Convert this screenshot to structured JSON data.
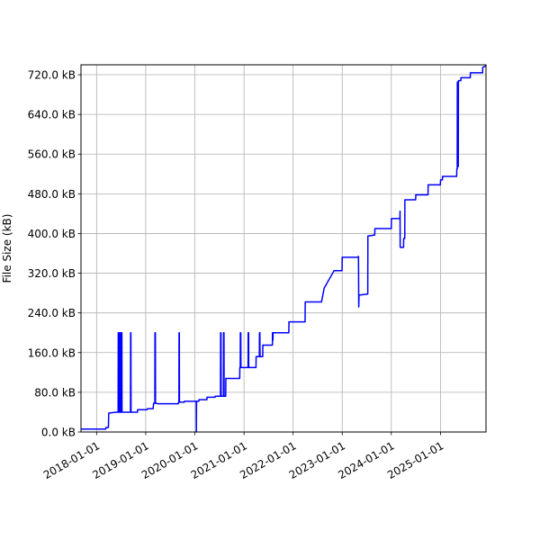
{
  "chart_data": {
    "type": "line",
    "title": "",
    "xlabel": "",
    "ylabel": "File Size (kB)",
    "xlim": [
      "2017-09-07",
      "2025-12-05"
    ],
    "ylim": [
      0,
      740
    ],
    "x_ticks": [
      "2018-01-01",
      "2019-01-01",
      "2020-01-01",
      "2021-01-01",
      "2022-01-01",
      "2023-01-01",
      "2024-01-01",
      "2025-01-01"
    ],
    "y_ticks": [
      0,
      80,
      160,
      240,
      320,
      400,
      480,
      560,
      640,
      720
    ],
    "y_tick_labels": [
      "0.0 kB",
      "80.0 kB",
      "160.0 kB",
      "240.0 kB",
      "320.0 kB",
      "400.0 kB",
      "480.0 kB",
      "560.0 kB",
      "640.0 kB",
      "720.0 kB"
    ],
    "grid": true,
    "line_color": "#0000ff",
    "series": [
      {
        "points": [
          [
            "2017-09-07",
            6
          ],
          [
            "2018-03-10",
            6
          ],
          [
            "2018-03-11",
            9
          ],
          [
            "2018-03-30",
            9
          ],
          [
            "2018-04-01",
            38
          ],
          [
            "2018-06-01",
            40
          ],
          [
            "2018-06-10",
            40
          ],
          [
            "2018-06-11",
            200
          ],
          [
            "2018-06-15",
            200
          ],
          [
            "2018-06-16",
            40
          ],
          [
            "2018-06-22",
            40
          ],
          [
            "2018-06-23",
            200
          ],
          [
            "2018-06-27",
            200
          ],
          [
            "2018-06-28",
            40
          ],
          [
            "2018-07-03",
            40
          ],
          [
            "2018-07-04",
            200
          ],
          [
            "2018-07-08",
            200
          ],
          [
            "2018-07-09",
            40
          ],
          [
            "2018-09-10",
            40
          ],
          [
            "2018-09-11",
            200
          ],
          [
            "2018-09-13",
            200
          ],
          [
            "2018-09-14",
            40
          ],
          [
            "2018-11-01",
            40
          ],
          [
            "2018-11-02",
            45
          ],
          [
            "2019-01-10",
            45
          ],
          [
            "2019-01-15",
            47
          ],
          [
            "2019-02-25",
            47
          ],
          [
            "2019-03-01",
            58
          ],
          [
            "2019-03-10",
            58
          ],
          [
            "2019-03-11",
            200
          ],
          [
            "2019-03-14",
            200
          ],
          [
            "2019-03-15",
            58
          ],
          [
            "2019-04-01",
            57
          ],
          [
            "2019-09-01",
            57
          ],
          [
            "2019-09-02",
            60
          ],
          [
            "2019-09-05",
            60
          ],
          [
            "2019-09-06",
            200
          ],
          [
            "2019-09-08",
            200
          ],
          [
            "2019-09-09",
            60
          ],
          [
            "2019-10-15",
            60
          ],
          [
            "2019-10-16",
            62
          ],
          [
            "2020-01-12",
            62
          ],
          [
            "2020-01-13",
            0
          ],
          [
            "2020-01-14",
            62
          ],
          [
            "2020-01-31",
            62
          ],
          [
            "2020-02-01",
            65
          ],
          [
            "2020-03-31",
            65
          ],
          [
            "2020-04-01",
            70
          ],
          [
            "2020-05-31",
            70
          ],
          [
            "2020-06-01",
            72
          ],
          [
            "2020-07-10",
            72
          ],
          [
            "2020-07-11",
            200
          ],
          [
            "2020-07-14",
            200
          ],
          [
            "2020-07-15",
            72
          ],
          [
            "2020-08-01",
            72
          ],
          [
            "2020-08-02",
            200
          ],
          [
            "2020-08-05",
            200
          ],
          [
            "2020-08-06",
            72
          ],
          [
            "2020-08-18",
            72
          ],
          [
            "2020-08-19",
            108
          ],
          [
            "2020-11-30",
            108
          ],
          [
            "2020-12-01",
            130
          ],
          [
            "2020-12-04",
            130
          ],
          [
            "2020-12-05",
            200
          ],
          [
            "2020-12-08",
            200
          ],
          [
            "2020-12-09",
            130
          ],
          [
            "2021-01-31",
            130
          ],
          [
            "2021-02-01",
            200
          ],
          [
            "2021-02-04",
            200
          ],
          [
            "2021-02-05",
            130
          ],
          [
            "2021-03-31",
            130
          ],
          [
            "2021-04-01",
            152
          ],
          [
            "2021-04-25",
            152
          ],
          [
            "2021-04-26",
            200
          ],
          [
            "2021-04-29",
            200
          ],
          [
            "2021-04-30",
            152
          ],
          [
            "2021-05-20",
            152
          ],
          [
            "2021-05-21",
            175
          ],
          [
            "2021-07-31",
            175
          ],
          [
            "2021-08-01",
            200
          ],
          [
            "2021-08-04",
            185
          ],
          [
            "2021-08-05",
            200
          ],
          [
            "2021-11-30",
            200
          ],
          [
            "2021-12-01",
            222
          ],
          [
            "2022-03-31",
            222
          ],
          [
            "2022-04-01",
            262
          ],
          [
            "2022-07-31",
            262
          ],
          [
            "2022-08-20",
            290
          ],
          [
            "2022-11-01",
            325
          ],
          [
            "2022-12-31",
            325
          ],
          [
            "2023-01-01",
            352
          ],
          [
            "2023-05-01",
            352
          ],
          [
            "2023-05-02",
            354
          ],
          [
            "2023-05-04",
            252
          ],
          [
            "2023-05-06",
            276
          ],
          [
            "2023-07-10",
            278
          ],
          [
            "2023-07-11",
            395
          ],
          [
            "2023-08-31",
            397
          ],
          [
            "2023-09-01",
            410
          ],
          [
            "2024-01-01",
            410
          ],
          [
            "2024-01-02",
            430
          ],
          [
            "2024-03-05",
            430
          ],
          [
            "2024-03-06",
            445
          ],
          [
            "2024-03-07",
            372
          ],
          [
            "2024-04-01",
            372
          ],
          [
            "2024-04-02",
            390
          ],
          [
            "2024-04-10",
            390
          ],
          [
            "2024-04-11",
            468
          ],
          [
            "2024-06-30",
            468
          ],
          [
            "2024-07-01",
            478
          ],
          [
            "2024-09-30",
            478
          ],
          [
            "2024-10-01",
            498
          ],
          [
            "2024-12-31",
            498
          ],
          [
            "2025-01-01",
            508
          ],
          [
            "2025-01-15",
            508
          ],
          [
            "2025-01-16",
            515
          ],
          [
            "2025-05-01",
            515
          ],
          [
            "2025-05-02",
            530
          ],
          [
            "2025-05-05",
            530
          ],
          [
            "2025-05-06",
            705
          ],
          [
            "2025-05-09",
            705
          ],
          [
            "2025-05-10",
            535
          ],
          [
            "2025-05-13",
            535
          ],
          [
            "2025-05-14",
            708
          ],
          [
            "2025-06-01",
            708
          ],
          [
            "2025-06-02",
            714
          ],
          [
            "2025-08-10",
            714
          ],
          [
            "2025-08-11",
            724
          ],
          [
            "2025-11-10",
            724
          ],
          [
            "2025-11-11",
            735
          ],
          [
            "2025-12-05",
            738
          ]
        ]
      }
    ]
  }
}
